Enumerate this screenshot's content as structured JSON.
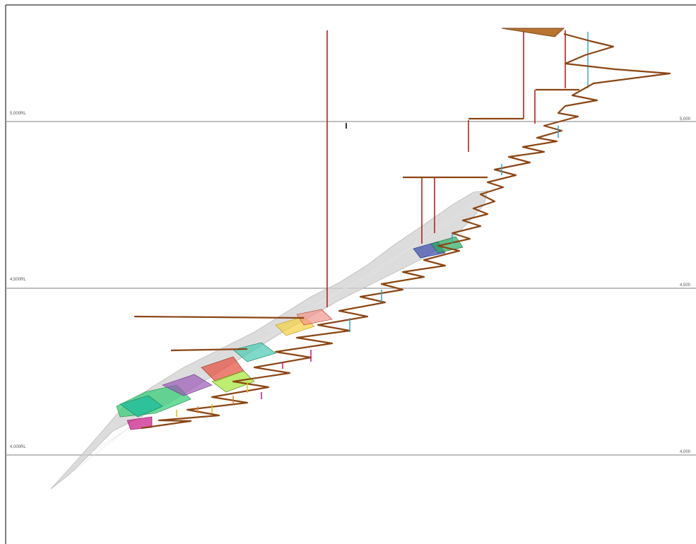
{
  "rl_levels": [
    {
      "left_label": "5,000RL",
      "right_label": "5,000"
    },
    {
      "left_label": "4,500RL",
      "right_label": "4,500"
    },
    {
      "left_label": "4,000RL",
      "right_label": "4,000"
    }
  ],
  "colors": {
    "frame": "#555555",
    "rl_line": "#999999",
    "decline": "#8B4513",
    "ore_shell": "#C8C8C8",
    "vertical_red": "#B22222",
    "vertical_cyan": "#2AA8C8"
  }
}
